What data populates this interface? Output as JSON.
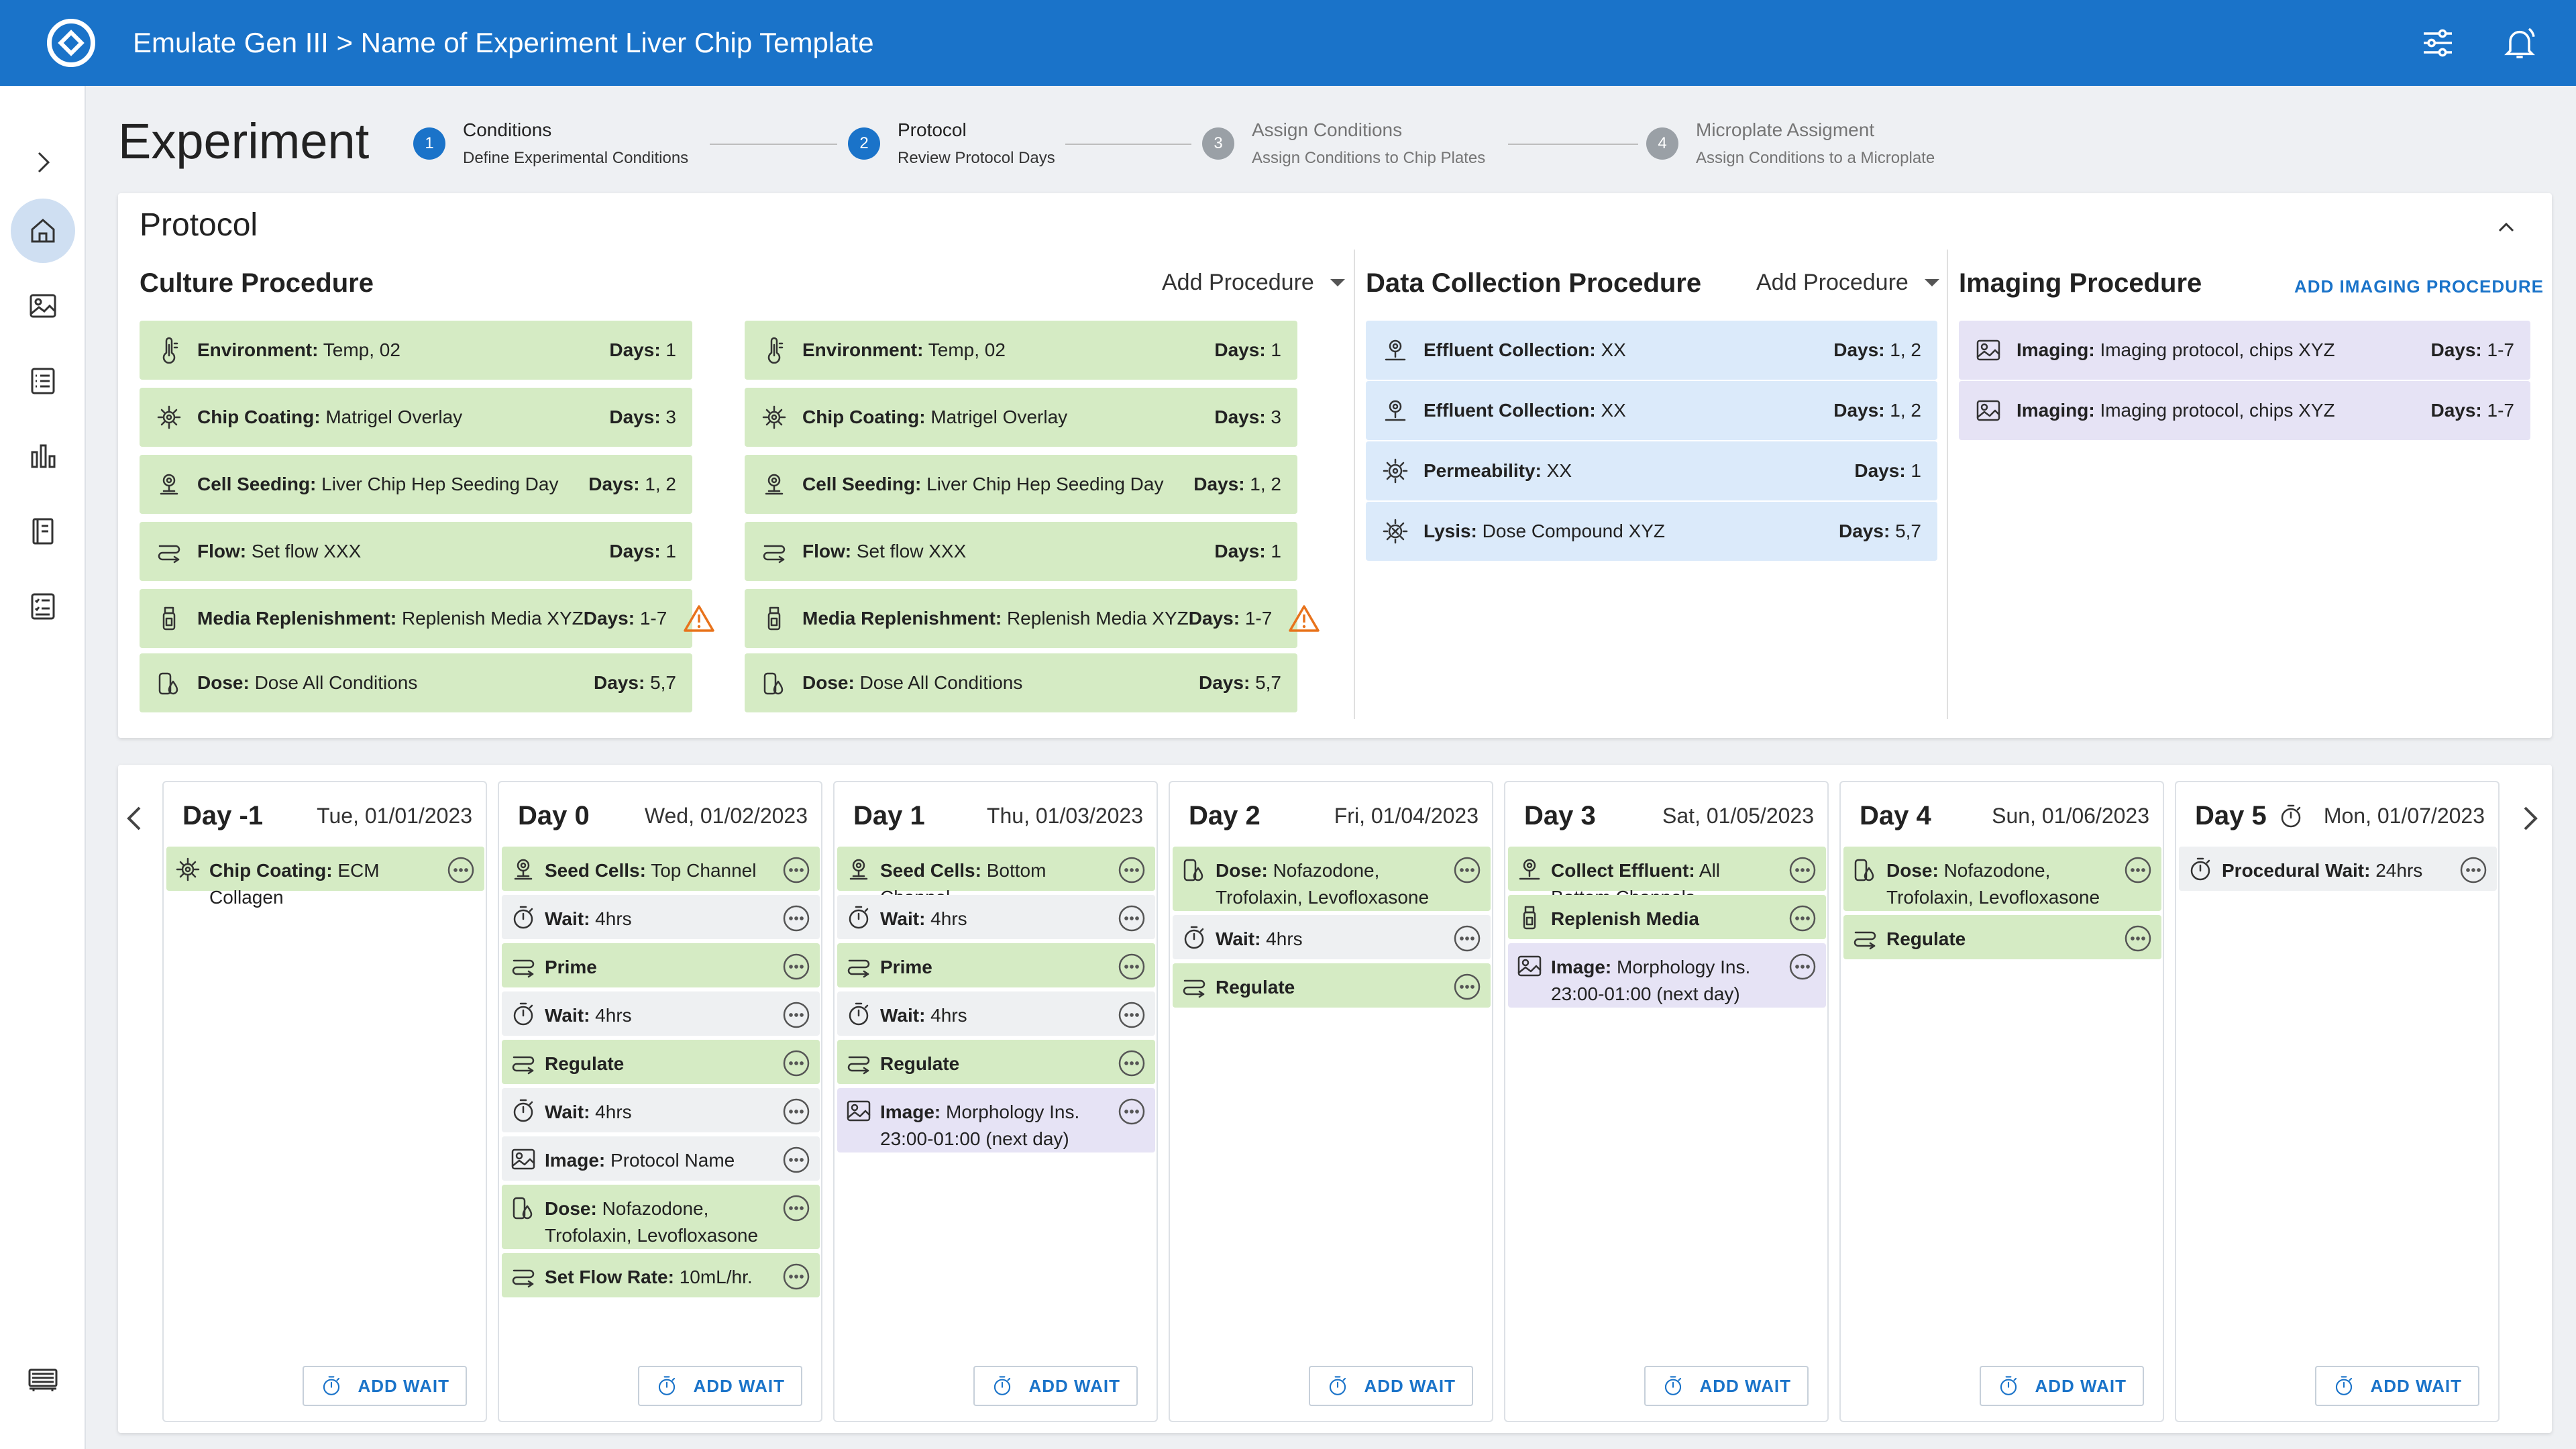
{
  "app": {
    "title": "Emulate Gen III > Name of Experiment Liver Chip Template"
  },
  "page_title": "Experiment",
  "stepper": [
    {
      "num": "1",
      "title": "Conditions",
      "sub": "Define Experimental Conditions",
      "state": "complete"
    },
    {
      "num": "2",
      "title": "Protocol",
      "sub": "Review Protocol Days",
      "state": "active"
    },
    {
      "num": "3",
      "title": "Assign Conditions",
      "sub": "Assign Conditions to Chip Plates",
      "state": "inactive"
    },
    {
      "num": "4",
      "title": "Microplate Assigment",
      "sub": "Assign Conditions to a Microplate",
      "state": "inactive"
    }
  ],
  "protocol": {
    "title": "Protocol",
    "culture": {
      "title": "Culture Procedure",
      "add_label": "Add Procedure",
      "left": [
        {
          "icon": "thermometer-icon",
          "name": "Environment:",
          "value": "Temp, 02",
          "days": "1"
        },
        {
          "icon": "coating-icon",
          "name": "Chip Coating:",
          "value": "Matrigel Overlay",
          "days": "3"
        },
        {
          "icon": "seeding-icon",
          "name": "Cell Seeding:",
          "value": "Liver Chip Hep Seeding Day",
          "days": "1, 2"
        },
        {
          "icon": "flow-icon",
          "name": "Flow:",
          "value": "Set flow XXX",
          "days": "1"
        },
        {
          "icon": "media-bottle-icon",
          "name": "Media Replenishment:",
          "value": "Replenish Media XYZ",
          "days": "1-7",
          "warning": true
        },
        {
          "icon": "dose-icon",
          "name": "Dose:",
          "value": "Dose All Conditions",
          "days": "5,7"
        }
      ],
      "right": [
        {
          "icon": "thermometer-icon",
          "name": "Environment:",
          "value": "Temp, 02",
          "days": "1"
        },
        {
          "icon": "coating-icon",
          "name": "Chip Coating:",
          "value": "Matrigel Overlay",
          "days": "3"
        },
        {
          "icon": "seeding-icon",
          "name": "Cell Seeding:",
          "value": "Liver Chip Hep Seeding Day",
          "days": "1, 2"
        },
        {
          "icon": "flow-icon",
          "name": "Flow:",
          "value": "Set flow XXX",
          "days": "1"
        },
        {
          "icon": "media-bottle-icon",
          "name": "Media Replenishment:",
          "value": "Replenish Media XYZ",
          "days": "1-7",
          "warning": true
        },
        {
          "icon": "dose-icon",
          "name": "Dose:",
          "value": "Dose All Conditions",
          "days": "5,7"
        }
      ]
    },
    "data_collection": {
      "title": "Data Collection Procedure",
      "add_label": "Add Procedure",
      "items": [
        {
          "icon": "effluent-icon",
          "name": "Effluent Collection:",
          "value": "XX",
          "days": "1, 2"
        },
        {
          "icon": "effluent-icon",
          "name": "Effluent Collection:",
          "value": "XX",
          "days": "1, 2"
        },
        {
          "icon": "permeability-icon",
          "name": "Permeability:",
          "value": "XX",
          "days": "1"
        },
        {
          "icon": "lysis-icon",
          "name": "Lysis:",
          "value": "Dose Compound XYZ",
          "days": "5,7"
        }
      ]
    },
    "imaging": {
      "title": "Imaging Procedure",
      "add_label": "ADD IMAGING PROCEDURE",
      "items": [
        {
          "icon": "image-icon",
          "name": "Imaging:",
          "value": "Imaging protocol, chips XYZ",
          "days": "1-7"
        },
        {
          "icon": "image-icon",
          "name": "Imaging:",
          "value": "Imaging protocol, chips XYZ",
          "days": "1-7"
        }
      ]
    },
    "days_label": "Days:"
  },
  "schedule": {
    "add_wait_label": "ADD WAIT",
    "days": [
      {
        "name": "Day -1",
        "date": "Tue, 01/01/2023",
        "events": [
          {
            "type": "green",
            "icon": "coating-icon",
            "bold": "Chip Coating:",
            "text": "ECM Collagen"
          }
        ]
      },
      {
        "name": "Day 0",
        "date": "Wed, 01/02/2023",
        "events": [
          {
            "type": "green",
            "icon": "seeding-icon",
            "bold": "Seed Cells:",
            "text": "Top Channel"
          },
          {
            "type": "grey",
            "icon": "timer-icon",
            "bold": "Wait:",
            "text": "4hrs"
          },
          {
            "type": "green",
            "icon": "flow-icon",
            "bold": "Prime",
            "text": ""
          },
          {
            "type": "grey",
            "icon": "timer-icon",
            "bold": "Wait:",
            "text": "4hrs"
          },
          {
            "type": "green",
            "icon": "flow-icon",
            "bold": "Regulate",
            "text": ""
          },
          {
            "type": "grey",
            "icon": "timer-icon",
            "bold": "Wait:",
            "text": "4hrs"
          },
          {
            "type": "grey",
            "icon": "image-icon",
            "bold": "Image:",
            "text": "Protocol Name"
          },
          {
            "type": "green",
            "icon": "dose-icon",
            "bold": "Dose:",
            "text": "Nofazodone, Trofolaxin, Levofloxasone"
          },
          {
            "type": "green",
            "icon": "flow-icon",
            "bold": "Set Flow Rate:",
            "text": "10mL/hr."
          }
        ]
      },
      {
        "name": "Day 1",
        "date": "Thu, 01/03/2023",
        "events": [
          {
            "type": "green",
            "icon": "seeding-icon",
            "bold": "Seed Cells:",
            "text": "Bottom Channel"
          },
          {
            "type": "grey",
            "icon": "timer-icon",
            "bold": "Wait:",
            "text": "4hrs"
          },
          {
            "type": "green",
            "icon": "flow-icon",
            "bold": "Prime",
            "text": ""
          },
          {
            "type": "grey",
            "icon": "timer-icon",
            "bold": "Wait:",
            "text": "4hrs"
          },
          {
            "type": "green",
            "icon": "flow-icon",
            "bold": "Regulate",
            "text": ""
          },
          {
            "type": "purple",
            "icon": "image-icon",
            "bold": "Image:",
            "text": "Morphology Ins.",
            "line2": "23:00-01:00 (next day)"
          }
        ]
      },
      {
        "name": "Day 2",
        "date": "Fri, 01/04/2023",
        "events": [
          {
            "type": "green",
            "icon": "dose-icon",
            "bold": "Dose:",
            "text": "Nofazodone, Trofolaxin, Levofloxasone"
          },
          {
            "type": "grey",
            "icon": "timer-icon",
            "bold": "Wait:",
            "text": "4hrs"
          },
          {
            "type": "green",
            "icon": "flow-icon",
            "bold": "Regulate",
            "text": ""
          }
        ]
      },
      {
        "name": "Day 3",
        "date": "Sat, 01/05/2023",
        "events": [
          {
            "type": "green",
            "icon": "effluent-icon",
            "bold": "Collect Effluent:",
            "text": "All Bottom Channels"
          },
          {
            "type": "green",
            "icon": "media-bottle-icon",
            "bold": "Replenish Media",
            "text": ""
          },
          {
            "type": "purple",
            "icon": "image-icon",
            "bold": "Image:",
            "text": "Morphology Ins.",
            "line2": "23:00-01:00 (next day)"
          }
        ]
      },
      {
        "name": "Day 4",
        "date": "Sun, 01/06/2023",
        "events": [
          {
            "type": "green",
            "icon": "dose-icon",
            "bold": "Dose:",
            "text": "Nofazodone, Trofolaxin, Levofloxasone"
          },
          {
            "type": "green",
            "icon": "flow-icon",
            "bold": "Regulate",
            "text": ""
          }
        ]
      },
      {
        "name": "Day 5",
        "date": "Mon, 01/07/2023",
        "timer": true,
        "events": [
          {
            "type": "grey",
            "icon": "timer-icon",
            "bold": "Procedural Wait:",
            "text": "24hrs"
          }
        ]
      }
    ]
  }
}
